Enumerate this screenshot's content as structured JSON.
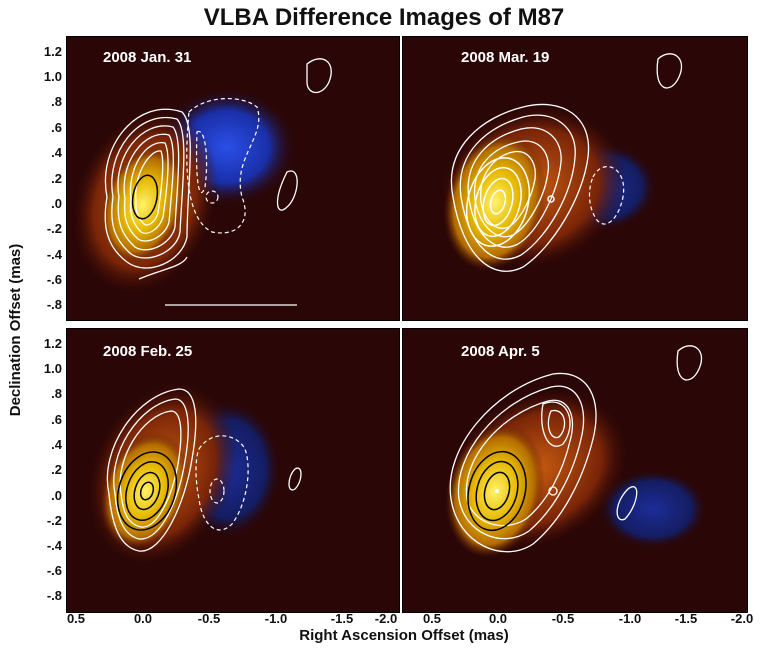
{
  "title": "VLBA Difference Images of M87",
  "y_axis_label": "Declination Offset (mas)",
  "x_axis_label": "Right Ascension Offset (mas)",
  "y_ticks": [
    "1.2",
    "1.0",
    ".8",
    ".6",
    ".4",
    ".2",
    ".0",
    "-.2",
    "-.4",
    "-.6",
    "-.8"
  ],
  "x_ticks_left": [
    "0.5",
    "0.0",
    "-0.5",
    "-1.0"
  ],
  "x_ticks_right": [
    "-1.5",
    "-2.0",
    "0.5",
    "0.0",
    "-0.5",
    "-1.0",
    "-1.5",
    "-2.0"
  ],
  "panels": [
    {
      "id": "jan31",
      "label": "2008 Jan. 31"
    },
    {
      "id": "mar19",
      "label": "2008 Mar. 19"
    },
    {
      "id": "feb25",
      "label": "2008 Feb. 25"
    },
    {
      "id": "apr5",
      "label": "2008 Apr. 5"
    }
  ],
  "colors": {
    "background": "#2a0606",
    "core": "#e6b800",
    "jet": "#b84a00",
    "negative": "#1a2fa8",
    "contour": "#ffffff"
  }
}
